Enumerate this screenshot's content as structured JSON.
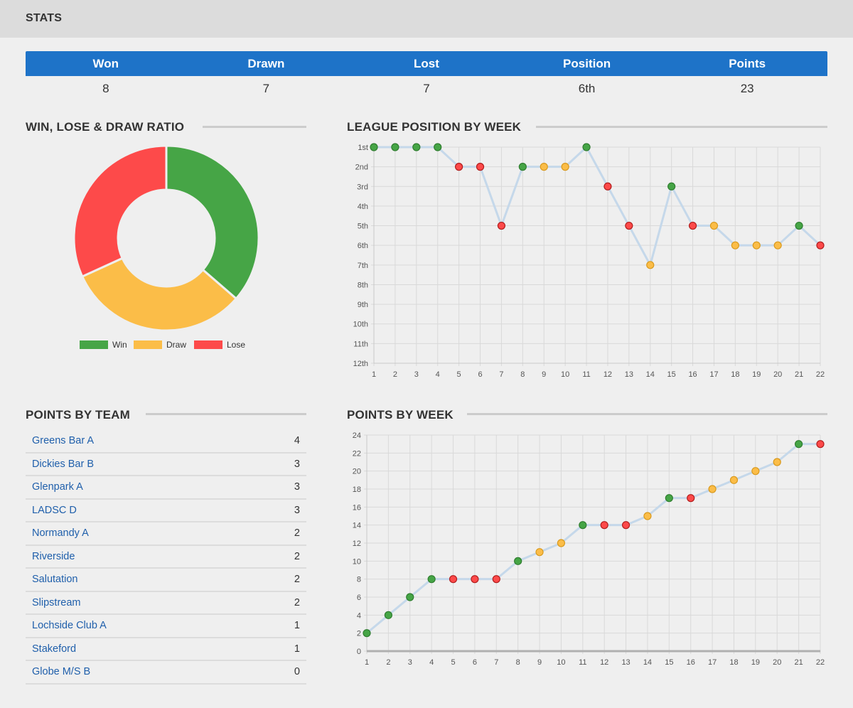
{
  "header": {
    "title": "STATS"
  },
  "summary": {
    "columns": [
      {
        "label": "Won",
        "value": "8"
      },
      {
        "label": "Drawn",
        "value": "7"
      },
      {
        "label": "Lost",
        "value": "7"
      },
      {
        "label": "Position",
        "value": "6th"
      },
      {
        "label": "Points",
        "value": "23"
      }
    ]
  },
  "sections": {
    "ratio_title": "WIN, LOSE & DRAW RATIO",
    "league_title": "LEAGUE POSITION BY WEEK",
    "team_title": "POINTS BY TEAM",
    "week_title": "POINTS BY WEEK"
  },
  "colors": {
    "win": "#46a546",
    "draw": "#fbbd48",
    "lose": "#fd4a4a",
    "line": "#c5d8ea",
    "header_blue": "#1e73c8",
    "link": "#1f5fab"
  },
  "teams": [
    {
      "name": "Greens Bar A",
      "points": "4"
    },
    {
      "name": "Dickies Bar B",
      "points": "3"
    },
    {
      "name": "Glenpark A",
      "points": "3"
    },
    {
      "name": "LADSC D",
      "points": "3"
    },
    {
      "name": "Normandy A",
      "points": "2"
    },
    {
      "name": "Riverside",
      "points": "2"
    },
    {
      "name": "Salutation",
      "points": "2"
    },
    {
      "name": "Slipstream",
      "points": "2"
    },
    {
      "name": "Lochside Club A",
      "points": "1"
    },
    {
      "name": "Stakeford",
      "points": "1"
    },
    {
      "name": "Globe M/S B",
      "points": "0"
    }
  ],
  "chart_data": [
    {
      "type": "pie",
      "categories": [
        "Win",
        "Draw",
        "Lose"
      ],
      "values": [
        8,
        7,
        7
      ],
      "legend": "bottom"
    },
    {
      "type": "line",
      "x": [
        1,
        2,
        3,
        4,
        5,
        6,
        7,
        8,
        9,
        10,
        11,
        12,
        13,
        14,
        15,
        16,
        17,
        18,
        19,
        20,
        21,
        22
      ],
      "values": [
        1,
        1,
        1,
        1,
        2,
        2,
        5,
        2,
        2,
        2,
        1,
        3,
        5,
        7,
        3,
        5,
        5,
        6,
        6,
        6,
        5,
        6
      ],
      "results": [
        "W",
        "W",
        "W",
        "W",
        "L",
        "L",
        "L",
        "W",
        "D",
        "D",
        "W",
        "L",
        "L",
        "D",
        "W",
        "L",
        "D",
        "D",
        "D",
        "D",
        "W",
        "L"
      ],
      "y_tick_labels": [
        "1st",
        "2nd",
        "3rd",
        "4th",
        "5th",
        "6th",
        "7th",
        "8th",
        "9th",
        "10th",
        "11th",
        "12th"
      ],
      "ylim": [
        1,
        12
      ],
      "y_reversed": true,
      "grid": true
    },
    {
      "type": "line",
      "x": [
        1,
        2,
        3,
        4,
        5,
        6,
        7,
        8,
        9,
        10,
        11,
        12,
        13,
        14,
        15,
        16,
        17,
        18,
        19,
        20,
        21,
        22
      ],
      "values": [
        2,
        4,
        6,
        8,
        8,
        8,
        8,
        10,
        11,
        12,
        14,
        14,
        14,
        15,
        17,
        17,
        18,
        19,
        20,
        21,
        23,
        23
      ],
      "results": [
        "W",
        "W",
        "W",
        "W",
        "L",
        "L",
        "L",
        "W",
        "D",
        "D",
        "W",
        "L",
        "L",
        "D",
        "W",
        "L",
        "D",
        "D",
        "D",
        "D",
        "W",
        "L"
      ],
      "ylim": [
        0,
        24
      ],
      "y_ticks": [
        0,
        2,
        4,
        6,
        8,
        10,
        12,
        14,
        16,
        18,
        20,
        22,
        24
      ],
      "grid": true
    }
  ]
}
